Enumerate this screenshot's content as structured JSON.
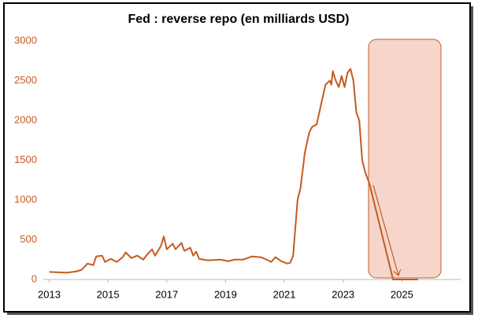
{
  "chart_data": {
    "type": "line",
    "title": "Fed : reverse repo (en milliards USD)",
    "x": [
      2013.0,
      2013.3,
      2013.6,
      2013.9,
      2014.1,
      2014.3,
      2014.5,
      2014.6,
      2014.8,
      2014.9,
      2015.1,
      2015.3,
      2015.5,
      2015.6,
      2015.8,
      2016.0,
      2016.2,
      2016.35,
      2016.5,
      2016.6,
      2016.8,
      2016.9,
      2017.0,
      2017.2,
      2017.3,
      2017.5,
      2017.6,
      2017.8,
      2017.9,
      2018.0,
      2018.1,
      2018.4,
      2018.8,
      2019.1,
      2019.3,
      2019.6,
      2019.9,
      2020.2,
      2020.4,
      2020.55,
      2020.7,
      2020.9,
      2021.1,
      2021.2,
      2021.3,
      2021.45,
      2021.55,
      2021.7,
      2021.85,
      2021.95,
      2022.1,
      2022.25,
      2022.4,
      2022.55,
      2022.6,
      2022.65,
      2022.75,
      2022.85,
      2022.95,
      2023.05,
      2023.15,
      2023.25,
      2023.35,
      2023.45,
      2023.55,
      2023.65,
      2023.75,
      2023.9,
      2024.7,
      2025.55
    ],
    "values": [
      95,
      90,
      85,
      100,
      120,
      200,
      180,
      290,
      300,
      220,
      260,
      220,
      280,
      340,
      270,
      300,
      250,
      320,
      380,
      300,
      420,
      540,
      380,
      450,
      380,
      460,
      360,
      400,
      300,
      350,
      260,
      240,
      250,
      230,
      250,
      250,
      290,
      280,
      250,
      220,
      280,
      230,
      200,
      210,
      300,
      1000,
      1150,
      1600,
      1850,
      1920,
      1950,
      2200,
      2450,
      2500,
      2450,
      2620,
      2500,
      2420,
      2560,
      2420,
      2600,
      2650,
      2500,
      2100,
      2000,
      1500,
      1350,
      1200,
      0,
      0
    ],
    "color": "#c55a22",
    "xlim": [
      2012.8,
      2027.0
    ],
    "xticks": [
      2013,
      2015,
      2017,
      2019,
      2021,
      2023,
      2025
    ],
    "ylim": [
      0,
      3000
    ],
    "yticks": [
      0,
      500,
      1000,
      1500,
      2000,
      2500,
      3000
    ]
  }
}
